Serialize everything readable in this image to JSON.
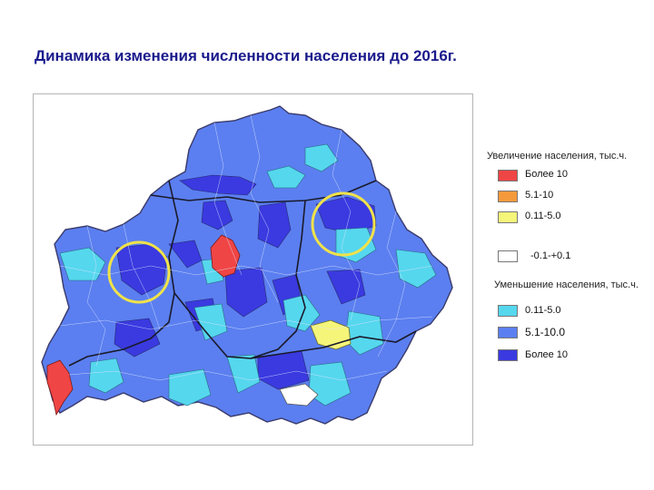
{
  "title": "Динамика изменения численности населения до 2016г.",
  "legend": {
    "increase_heading": "Увеличение населения, тыс.ч.",
    "increase": [
      {
        "label": "Более 10",
        "color": "#f04545"
      },
      {
        "label": "5.1-10",
        "color": "#f59a3c"
      },
      {
        "label": "0.11-5.0",
        "color": "#f5f57a"
      }
    ],
    "neutral": {
      "label": "-0.1-+0.1",
      "color": "#ffffff"
    },
    "decrease_heading": "Уменьшение населения, тыс.ч.",
    "decrease": [
      {
        "label": "0.11-5.0",
        "color": "#55d7ee"
      },
      {
        "label": "5.1-10.0",
        "color": "#5b7ff0"
      },
      {
        "label": "Более 10",
        "color": "#3a3ae0"
      }
    ]
  },
  "colors": {
    "base": "#5b7ff0",
    "dark": "#3a3ae0",
    "light": "#55d7ee",
    "red": "#f04545",
    "yellow": "#f5f57a",
    "white": "#ffffff",
    "circle": "#f0e24a"
  }
}
